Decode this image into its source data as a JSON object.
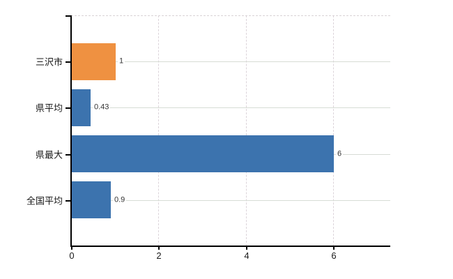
{
  "chart_data": {
    "type": "bar",
    "orientation": "horizontal",
    "title": "",
    "xlabel": "",
    "ylabel": "",
    "categories": [
      "三沢市",
      "県平均",
      "県最大",
      "全国平均"
    ],
    "values": [
      1,
      0.43,
      6,
      0.9
    ],
    "value_labels": [
      "1",
      "0.43",
      "6",
      "0.9"
    ],
    "highlight_index": 0,
    "x_tick_values": [
      0,
      2,
      4,
      6
    ],
    "x_tick_labels": [
      "0",
      "2",
      "4",
      "6"
    ],
    "xlim": [
      0,
      7.3
    ],
    "grid": true,
    "legend": false
  },
  "colors": {
    "bar_highlight": "#ef9141",
    "bar_default": "#3c73ae",
    "grid_horizontal": "#d7dcd5",
    "grid_vertical": "#dcd4da",
    "frame_dashed": "#d8d2d6",
    "axis": "#000000",
    "category_text": "#1a1a1a",
    "value_text": "#333333",
    "background": "#ffffff"
  }
}
